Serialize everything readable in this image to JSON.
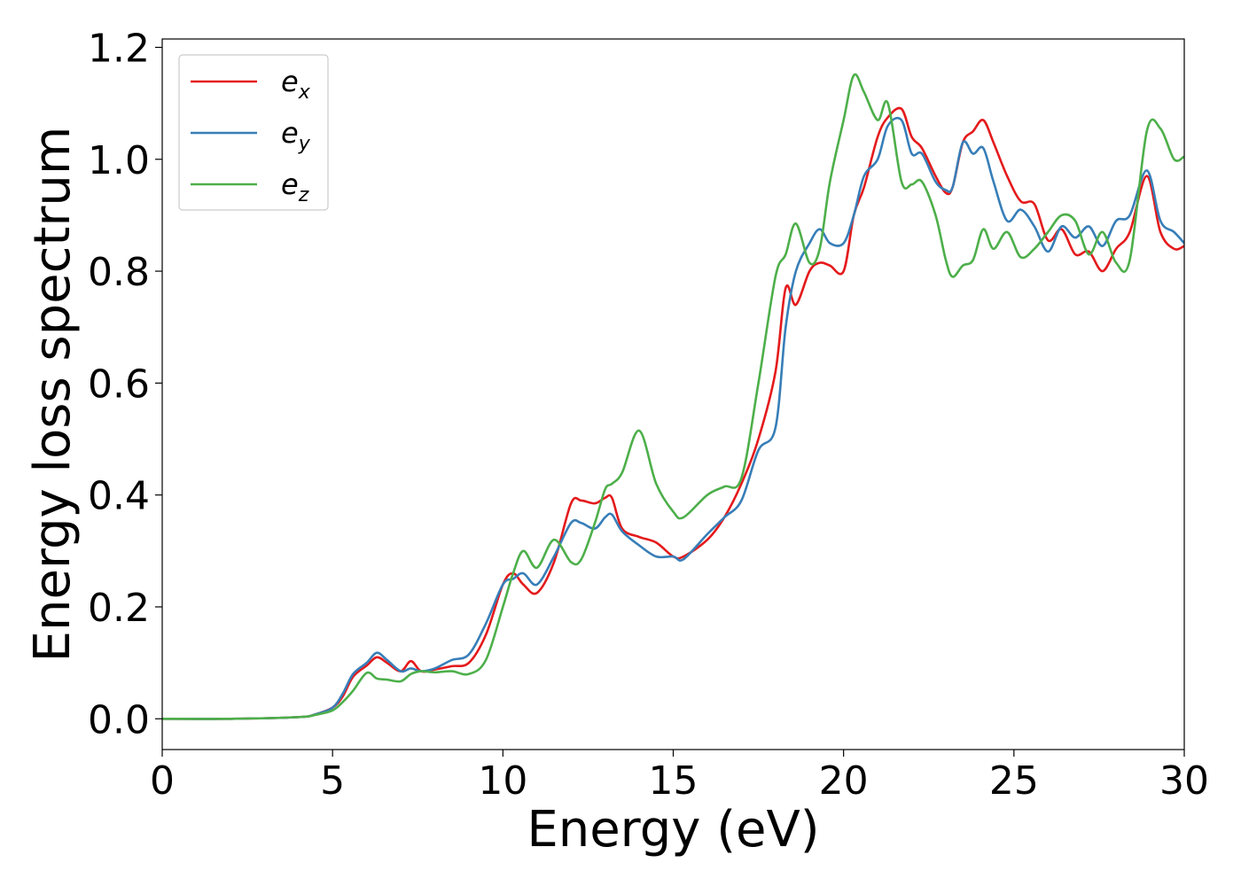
{
  "chart_data": {
    "type": "line",
    "title": "",
    "xlabel": "Energy (eV)",
    "ylabel": "Energy loss spectrum",
    "xlim": [
      0,
      30
    ],
    "ylim": [
      -0.055,
      1.215
    ],
    "xticks": [
      0,
      5,
      10,
      15,
      20,
      25,
      30
    ],
    "xtick_labels": [
      "0",
      "5",
      "10",
      "15",
      "20",
      "25",
      "30"
    ],
    "yticks": [
      0.0,
      0.2,
      0.4,
      0.6,
      0.8,
      1.0,
      1.2
    ],
    "ytick_labels": [
      "0.0",
      "0.2",
      "0.4",
      "0.6",
      "0.8",
      "1.0",
      "1.2"
    ],
    "grid": false,
    "legend": {
      "placement": "top-left"
    },
    "series": [
      {
        "name": "e_x",
        "label_base": "e",
        "label_sub": "x",
        "color": "#e41a1c",
        "x": [
          0,
          2,
          4,
          4.5,
          5,
          5.3,
          5.6,
          6.0,
          6.3,
          6.6,
          7.0,
          7.3,
          7.6,
          8.0,
          8.5,
          9.0,
          9.5,
          10.0,
          10.3,
          10.6,
          11.0,
          11.5,
          12.0,
          12.3,
          12.7,
          13.0,
          13.2,
          13.5,
          14.0,
          14.5,
          15.0,
          15.3,
          16.0,
          16.5,
          17.0,
          17.5,
          18.0,
          18.3,
          18.6,
          19.0,
          19.3,
          19.6,
          20.0,
          20.3,
          20.6,
          21.0,
          21.3,
          21.7,
          22.0,
          22.3,
          22.7,
          23.0,
          23.2,
          23.5,
          23.8,
          24.1,
          24.4,
          24.8,
          25.2,
          25.6,
          26.0,
          26.4,
          26.8,
          27.2,
          27.6,
          28.0,
          28.4,
          28.9,
          29.3,
          29.7,
          30.0
        ],
        "y": [
          0.0,
          0.0,
          0.003,
          0.008,
          0.02,
          0.04,
          0.075,
          0.095,
          0.11,
          0.1,
          0.085,
          0.103,
          0.085,
          0.088,
          0.094,
          0.1,
          0.15,
          0.24,
          0.26,
          0.24,
          0.225,
          0.28,
          0.385,
          0.39,
          0.385,
          0.395,
          0.395,
          0.34,
          0.325,
          0.315,
          0.29,
          0.29,
          0.32,
          0.36,
          0.42,
          0.5,
          0.62,
          0.77,
          0.74,
          0.8,
          0.815,
          0.81,
          0.8,
          0.9,
          0.95,
          1.04,
          1.075,
          1.09,
          1.04,
          1.02,
          0.97,
          0.94,
          0.95,
          1.03,
          1.05,
          1.07,
          1.03,
          0.97,
          0.925,
          0.92,
          0.855,
          0.875,
          0.83,
          0.835,
          0.8,
          0.84,
          0.87,
          0.97,
          0.87,
          0.84,
          0.845
        ]
      },
      {
        "name": "e_y",
        "label_base": "e",
        "label_sub": "y",
        "color": "#377eb8",
        "x": [
          0,
          2,
          4,
          4.5,
          5,
          5.3,
          5.6,
          6.0,
          6.3,
          6.6,
          7.0,
          7.3,
          7.6,
          8.0,
          8.5,
          9.0,
          9.5,
          10.0,
          10.3,
          10.6,
          11.0,
          11.5,
          12.0,
          12.3,
          12.7,
          13.0,
          13.2,
          13.5,
          14.0,
          14.5,
          15.0,
          15.3,
          16.0,
          16.5,
          17.0,
          17.5,
          18.0,
          18.3,
          18.6,
          19.0,
          19.3,
          19.6,
          20.0,
          20.3,
          20.6,
          21.0,
          21.3,
          21.7,
          22.0,
          22.3,
          22.7,
          23.0,
          23.2,
          23.5,
          23.8,
          24.1,
          24.4,
          24.8,
          25.2,
          25.6,
          26.0,
          26.4,
          26.8,
          27.2,
          27.6,
          28.0,
          28.4,
          28.9,
          29.3,
          29.7,
          30.0
        ],
        "y": [
          0.0,
          0.0,
          0.003,
          0.008,
          0.02,
          0.045,
          0.08,
          0.1,
          0.118,
          0.105,
          0.085,
          0.09,
          0.085,
          0.09,
          0.105,
          0.115,
          0.17,
          0.24,
          0.25,
          0.26,
          0.24,
          0.29,
          0.35,
          0.35,
          0.34,
          0.36,
          0.365,
          0.335,
          0.31,
          0.29,
          0.29,
          0.285,
          0.33,
          0.36,
          0.39,
          0.48,
          0.52,
          0.7,
          0.8,
          0.85,
          0.875,
          0.85,
          0.85,
          0.9,
          0.97,
          1.0,
          1.06,
          1.07,
          1.01,
          1.01,
          0.96,
          0.945,
          0.95,
          1.03,
          1.01,
          1.02,
          0.96,
          0.89,
          0.91,
          0.88,
          0.835,
          0.88,
          0.86,
          0.88,
          0.845,
          0.89,
          0.9,
          0.98,
          0.89,
          0.87,
          0.85
        ]
      },
      {
        "name": "e_z",
        "label_base": "e",
        "label_sub": "z",
        "color": "#4daf4a",
        "x": [
          0,
          2,
          4,
          4.5,
          5,
          5.3,
          5.6,
          6.0,
          6.3,
          6.6,
          7.0,
          7.3,
          7.6,
          8.0,
          8.5,
          9.0,
          9.5,
          10.0,
          10.3,
          10.6,
          11.0,
          11.5,
          12.0,
          12.3,
          12.7,
          13.0,
          13.2,
          13.5,
          14.0,
          14.5,
          15.0,
          15.3,
          16.0,
          16.5,
          17.0,
          17.5,
          18.0,
          18.3,
          18.6,
          19.0,
          19.3,
          19.6,
          20.0,
          20.3,
          20.6,
          21.0,
          21.3,
          21.7,
          22.0,
          22.3,
          22.7,
          23.0,
          23.2,
          23.5,
          23.8,
          24.1,
          24.4,
          24.8,
          25.2,
          25.6,
          26.0,
          26.4,
          26.8,
          27.2,
          27.6,
          28.0,
          28.4,
          28.9,
          29.3,
          29.7,
          30.0
        ],
        "y": [
          0.0,
          0.0,
          0.003,
          0.007,
          0.015,
          0.03,
          0.05,
          0.082,
          0.072,
          0.07,
          0.067,
          0.08,
          0.085,
          0.083,
          0.085,
          0.08,
          0.105,
          0.2,
          0.26,
          0.3,
          0.27,
          0.32,
          0.28,
          0.285,
          0.35,
          0.41,
          0.42,
          0.44,
          0.515,
          0.42,
          0.37,
          0.36,
          0.4,
          0.415,
          0.43,
          0.6,
          0.79,
          0.83,
          0.885,
          0.815,
          0.84,
          0.96,
          1.07,
          1.15,
          1.12,
          1.07,
          1.1,
          0.96,
          0.955,
          0.96,
          0.9,
          0.82,
          0.79,
          0.81,
          0.82,
          0.875,
          0.84,
          0.87,
          0.825,
          0.84,
          0.87,
          0.9,
          0.89,
          0.83,
          0.87,
          0.815,
          0.82,
          1.05,
          1.055,
          1.0,
          1.005
        ]
      }
    ]
  }
}
